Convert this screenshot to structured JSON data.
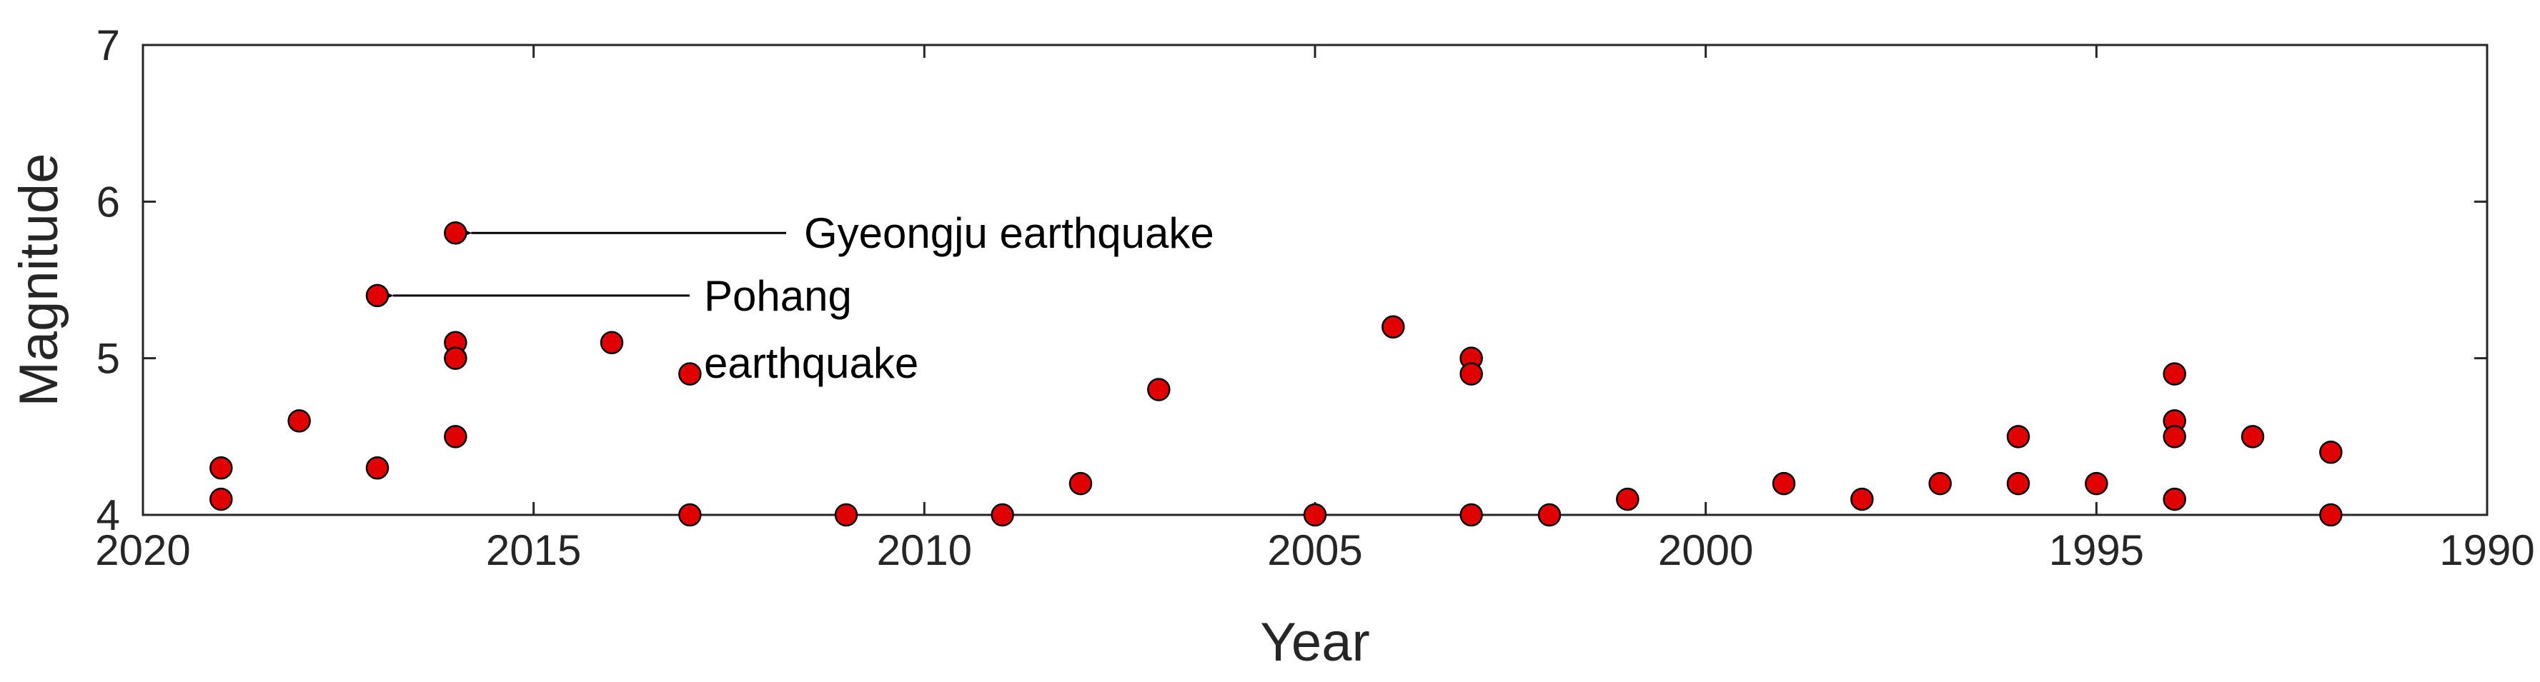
{
  "chart_data": {
    "type": "scatter",
    "title": "",
    "xlabel": "Year",
    "ylabel": "Magnitude",
    "xlim": [
      2020,
      1990
    ],
    "ylim": [
      4,
      7
    ],
    "x_reversed": true,
    "xticks": [
      "2020",
      "2015",
      "2010",
      "2005",
      "2000",
      "1995",
      "1990"
    ],
    "yticks": [
      "4",
      "5",
      "6",
      "7"
    ],
    "grid": false,
    "marker_color": "#e00000",
    "marker_edge": "#000000",
    "points": [
      {
        "x": 2019,
        "y": 4.3
      },
      {
        "x": 2019,
        "y": 4.1
      },
      {
        "x": 2018,
        "y": 4.6
      },
      {
        "x": 2017,
        "y": 5.4
      },
      {
        "x": 2017,
        "y": 4.3
      },
      {
        "x": 2016,
        "y": 5.8
      },
      {
        "x": 2016,
        "y": 5.1
      },
      {
        "x": 2016,
        "y": 5.0
      },
      {
        "x": 2016,
        "y": 4.5
      },
      {
        "x": 2014,
        "y": 5.1
      },
      {
        "x": 2013,
        "y": 4.9
      },
      {
        "x": 2013,
        "y": 4.0
      },
      {
        "x": 2011,
        "y": 4.0
      },
      {
        "x": 2009,
        "y": 4.0
      },
      {
        "x": 2008,
        "y": 4.2
      },
      {
        "x": 2007,
        "y": 4.8
      },
      {
        "x": 2005,
        "y": 4.0
      },
      {
        "x": 2004,
        "y": 5.2
      },
      {
        "x": 2003,
        "y": 5.0
      },
      {
        "x": 2003,
        "y": 4.9
      },
      {
        "x": 2003,
        "y": 4.0
      },
      {
        "x": 2002,
        "y": 4.0
      },
      {
        "x": 2001,
        "y": 4.1
      },
      {
        "x": 1999,
        "y": 4.2
      },
      {
        "x": 1998,
        "y": 4.1
      },
      {
        "x": 1997,
        "y": 4.2
      },
      {
        "x": 1996,
        "y": 4.5
      },
      {
        "x": 1996,
        "y": 4.2
      },
      {
        "x": 1995,
        "y": 4.2
      },
      {
        "x": 1994,
        "y": 4.9
      },
      {
        "x": 1994,
        "y": 4.6
      },
      {
        "x": 1994,
        "y": 4.5
      },
      {
        "x": 1994,
        "y": 4.1
      },
      {
        "x": 1993,
        "y": 4.5
      },
      {
        "x": 1992,
        "y": 4.4
      },
      {
        "x": 1992,
        "y": 4.0
      }
    ],
    "annotations": [
      {
        "text": "Gyeongju earthquake",
        "x": 2016,
        "y": 5.8,
        "arrow": true
      },
      {
        "text": "Pohang",
        "text2": "earthquake",
        "x": 2017,
        "y": 5.4,
        "arrow": true
      }
    ]
  }
}
